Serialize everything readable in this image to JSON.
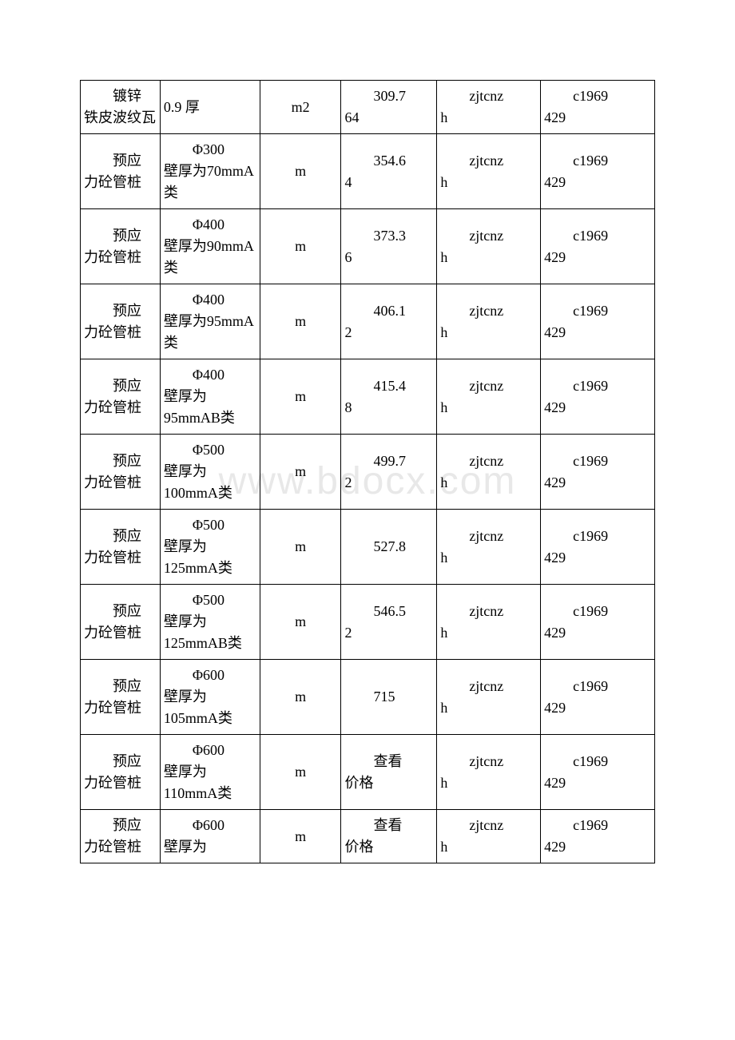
{
  "watermark": "www.bdocx.com",
  "table": {
    "rows": [
      {
        "name_l1": "镀锌",
        "name_l2": "铁皮波纹瓦",
        "spec_l1": "",
        "spec_l2": "0.9 厚",
        "unit": "m2",
        "price_l1": "309.7",
        "price_l2": "64",
        "code1_l1": "zjtcnz",
        "code1_l2": "h",
        "code2_l1": "c1969",
        "code2_l2": "429"
      },
      {
        "name_l1": "预应",
        "name_l2": "力砼管桩",
        "spec_l1": "Φ300",
        "spec_l2": "壁厚为70mmA 类",
        "unit": "m",
        "price_l1": "354.6",
        "price_l2": "4",
        "code1_l1": "zjtcnz",
        "code1_l2": "h",
        "code2_l1": "c1969",
        "code2_l2": "429"
      },
      {
        "name_l1": "预应",
        "name_l2": "力砼管桩",
        "spec_l1": "Φ400",
        "spec_l2": "壁厚为90mmA 类",
        "unit": "m",
        "price_l1": "373.3",
        "price_l2": "6",
        "code1_l1": "zjtcnz",
        "code1_l2": "h",
        "code2_l1": "c1969",
        "code2_l2": "429"
      },
      {
        "name_l1": "预应",
        "name_l2": "力砼管桩",
        "spec_l1": "Φ400",
        "spec_l2": "壁厚为95mmA 类",
        "unit": "m",
        "price_l1": "406.1",
        "price_l2": "2",
        "code1_l1": "zjtcnz",
        "code1_l2": "h",
        "code2_l1": "c1969",
        "code2_l2": "429"
      },
      {
        "name_l1": "预应",
        "name_l2": "力砼管桩",
        "spec_l1": "Φ400",
        "spec_l2": "壁厚为95mmAB类",
        "unit": "m",
        "price_l1": "415.4",
        "price_l2": "8",
        "code1_l1": "zjtcnz",
        "code1_l2": "h",
        "code2_l1": "c1969",
        "code2_l2": "429"
      },
      {
        "name_l1": "预应",
        "name_l2": "力砼管桩",
        "spec_l1": "Φ500",
        "spec_l2": "壁厚为100mmA类",
        "unit": "m",
        "price_l1": "499.7",
        "price_l2": "2",
        "code1_l1": "zjtcnz",
        "code1_l2": "h",
        "code2_l1": "c1969",
        "code2_l2": "429"
      },
      {
        "name_l1": "预应",
        "name_l2": "力砼管桩",
        "spec_l1": "Φ500",
        "spec_l2": "壁厚为125mmA类",
        "unit": "m",
        "price_l1": "527.8",
        "price_l2": "",
        "code1_l1": "zjtcnz",
        "code1_l2": "h",
        "code2_l1": "c1969",
        "code2_l2": "429"
      },
      {
        "name_l1": "预应",
        "name_l2": "力砼管桩",
        "spec_l1": "Φ500",
        "spec_l2": "壁厚为125mmAB类",
        "unit": "m",
        "price_l1": "546.5",
        "price_l2": "2",
        "code1_l1": "zjtcnz",
        "code1_l2": "h",
        "code2_l1": "c1969",
        "code2_l2": "429"
      },
      {
        "name_l1": "预应",
        "name_l2": "力砼管桩",
        "spec_l1": "Φ600",
        "spec_l2": "壁厚为105mmA类",
        "unit": "m",
        "price_l1": "715",
        "price_l2": "",
        "code1_l1": "zjtcnz",
        "code1_l2": "h",
        "code2_l1": "c1969",
        "code2_l2": "429"
      },
      {
        "name_l1": "预应",
        "name_l2": "力砼管桩",
        "spec_l1": "Φ600",
        "spec_l2": "壁厚为110mmA类",
        "unit": "m",
        "price_l1": "查看",
        "price_l2": "价格",
        "code1_l1": "zjtcnz",
        "code1_l2": "h",
        "code2_l1": "c1969",
        "code2_l2": "429"
      },
      {
        "name_l1": "预应",
        "name_l2": "力砼管桩",
        "spec_l1": "Φ600",
        "spec_l2": "壁厚为",
        "unit": "m",
        "price_l1": "查看",
        "price_l2": "价格",
        "code1_l1": "zjtcnz",
        "code1_l2": "h",
        "code2_l1": "c1969",
        "code2_l2": "429"
      }
    ]
  }
}
